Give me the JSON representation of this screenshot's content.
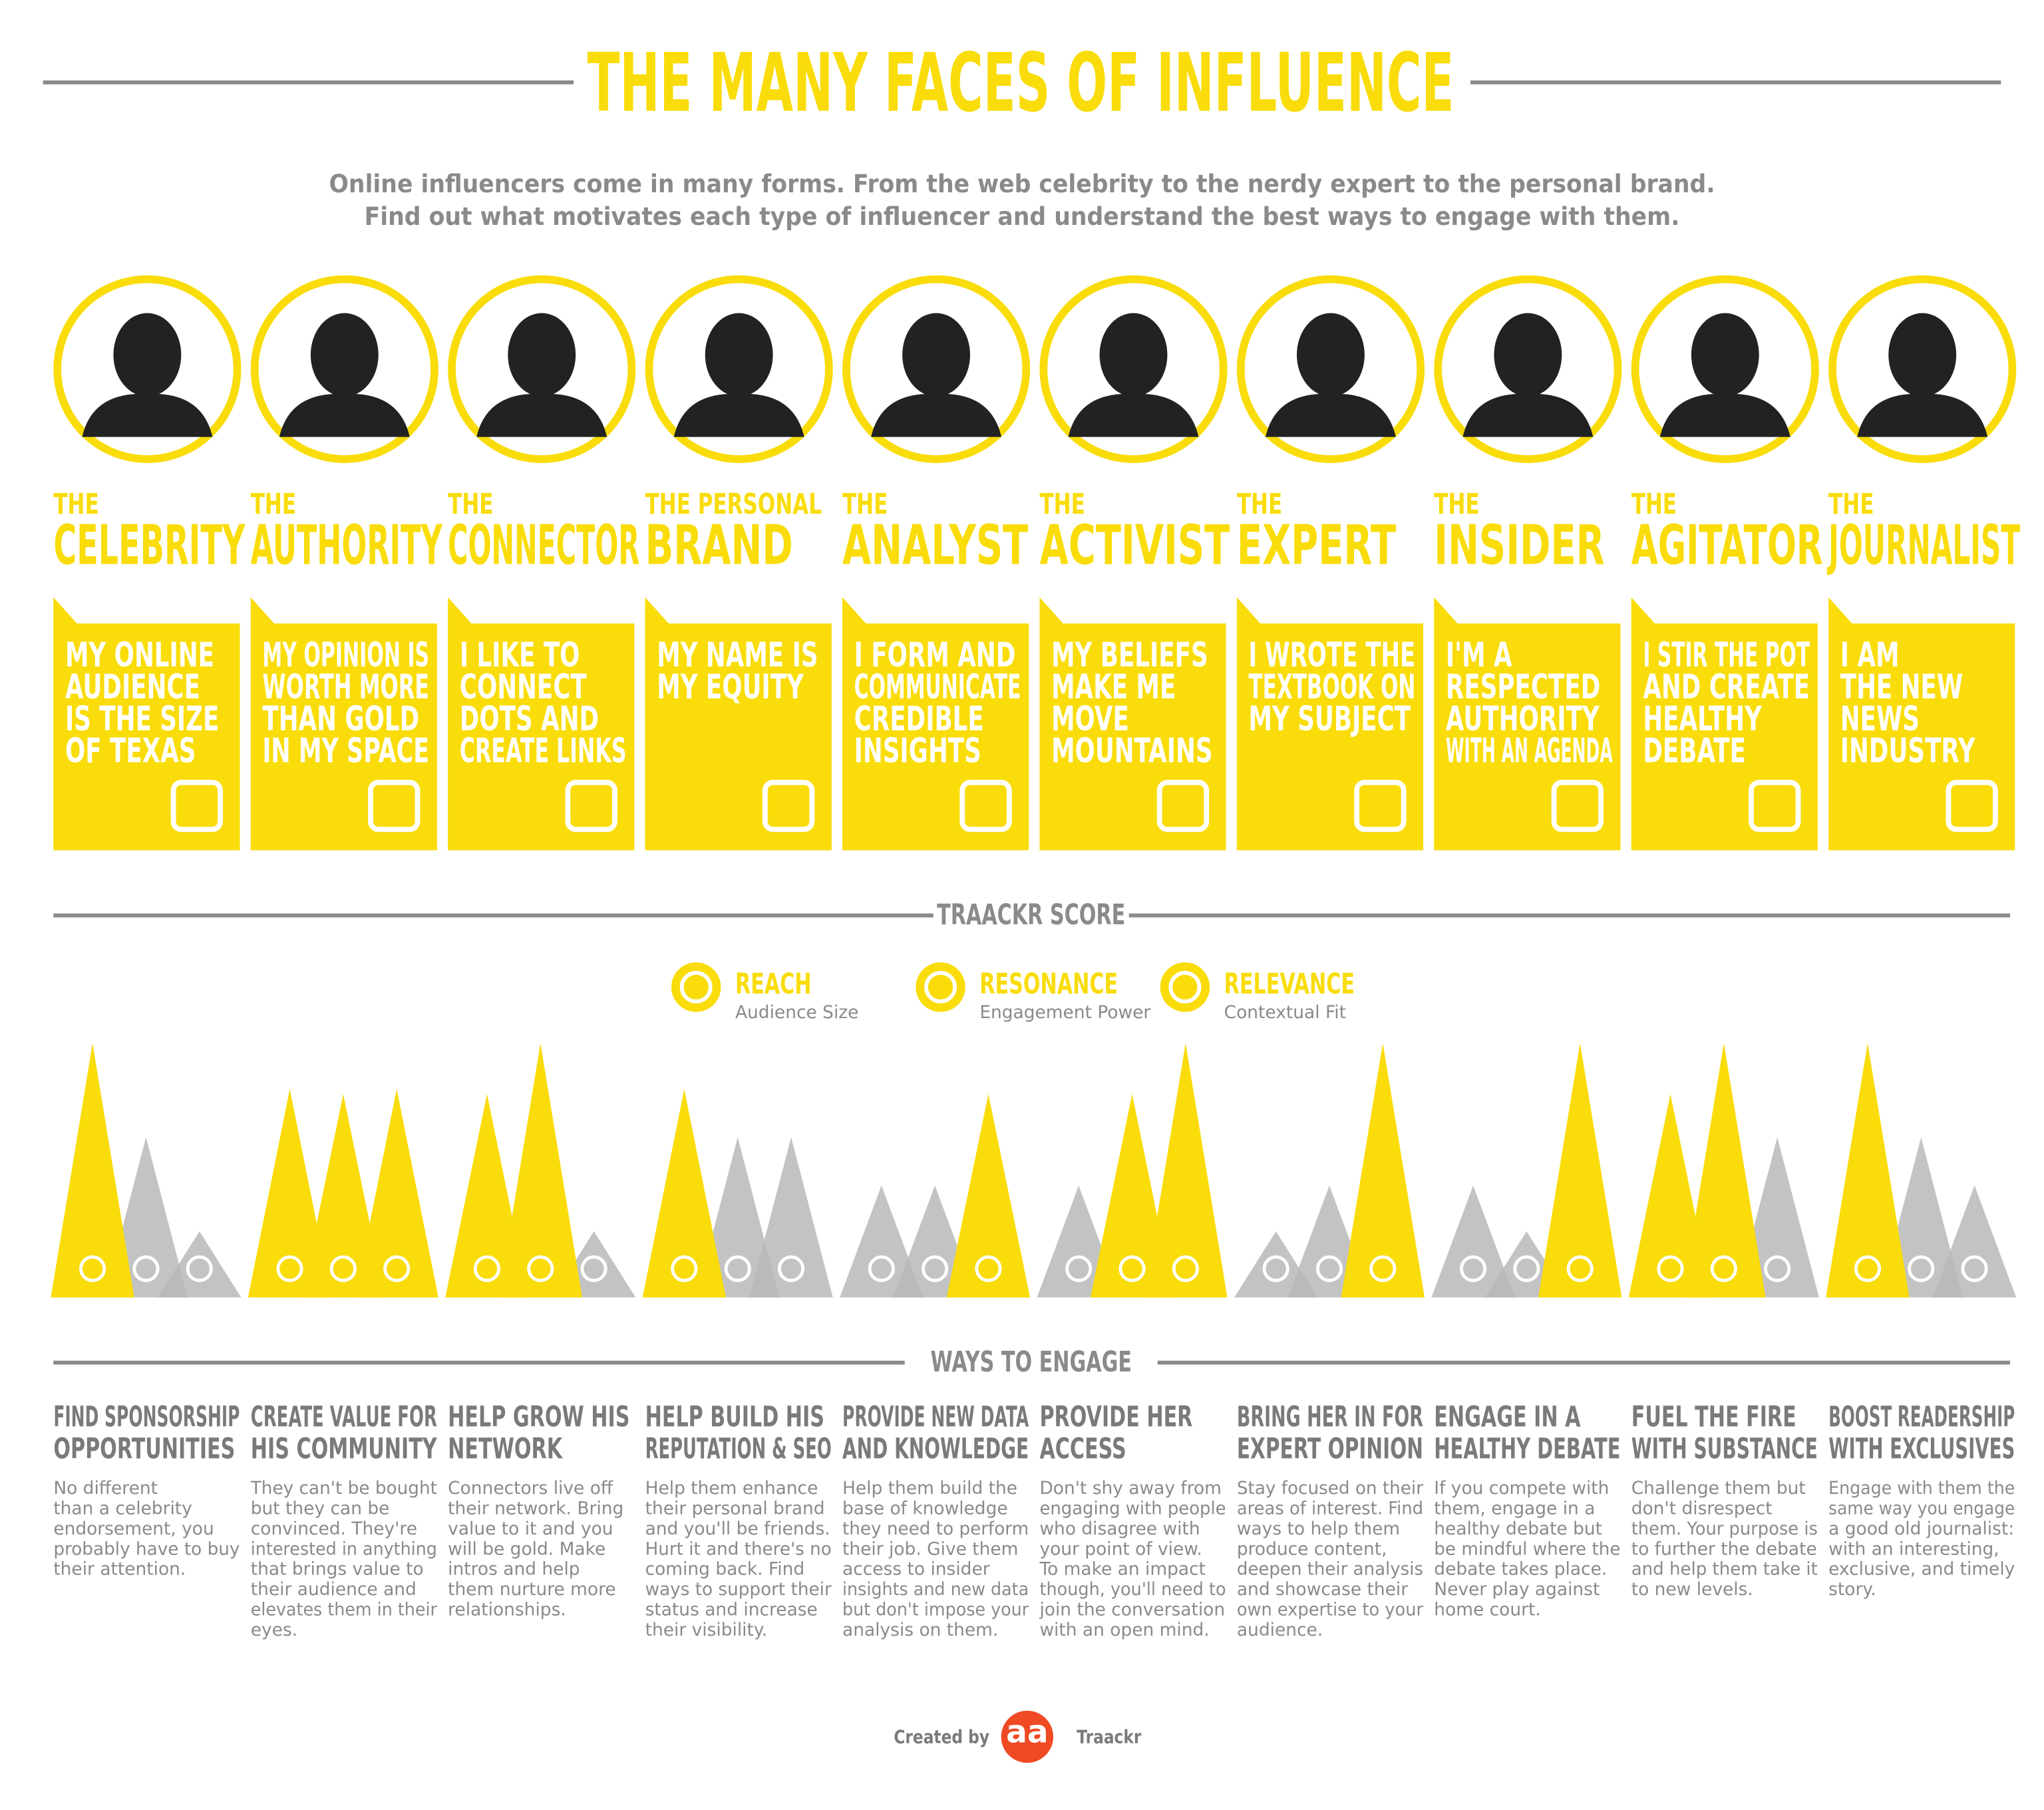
{
  "header": {
    "title": "THE MANY FACES OF INFLUENCE",
    "subtitle": [
      "Online influencers come in many forms. From the web celebrity to the nerdy expert to the personal brand.",
      "Find out what motivates each type of influencer and understand the best ways to engage with them."
    ]
  },
  "profiles": [
    {
      "prefix": "THE",
      "name": "CELEBRITY",
      "quote": [
        "MY ONLINE",
        "AUDIENCE",
        "IS THE SIZE",
        "OF TEXAS"
      ]
    },
    {
      "prefix": "THE",
      "name": "AUTHORITY",
      "quote": [
        "MY OPINION IS",
        "WORTH MORE",
        "THAN GOLD",
        "IN MY SPACE"
      ]
    },
    {
      "prefix": "THE",
      "name": "CONNECTOR",
      "quote": [
        "I LIKE TO",
        "CONNECT",
        "DOTS AND",
        "CREATE LINKS"
      ]
    },
    {
      "prefix": "THE PERSONAL",
      "name": "BRAND",
      "quote": [
        "MY NAME IS",
        "MY EQUITY"
      ]
    },
    {
      "prefix": "THE",
      "name": "ANALYST",
      "quote": [
        "I FORM AND",
        "COMMUNICATE",
        "CREDIBLE",
        "INSIGHTS"
      ]
    },
    {
      "prefix": "THE",
      "name": "ACTIVIST",
      "quote": [
        "MY BELIEFS",
        "MAKE ME",
        "MOVE",
        "MOUNTAINS"
      ]
    },
    {
      "prefix": "THE",
      "name": "EXPERT",
      "quote": [
        "I WROTE THE",
        "TEXTBOOK ON",
        "MY SUBJECT"
      ]
    },
    {
      "prefix": "THE",
      "name": "INSIDER",
      "quote": [
        "I'M A",
        "RESPECTED",
        "AUTHORITY",
        "WITH AN AGENDA"
      ]
    },
    {
      "prefix": "THE",
      "name": "AGITATOR",
      "quote": [
        "I STIR THE POT",
        "AND CREATE",
        "HEALTHY",
        "DEBATE"
      ]
    },
    {
      "prefix": "THE",
      "name": "JOURNALIST",
      "quote": [
        "I AM",
        "THE NEW",
        "NEWS",
        "INDUSTRY"
      ]
    }
  ],
  "traackr_score": {
    "title": "TRAACKR SCORE",
    "metrics": [
      {
        "name": "REACH",
        "description": "Audience Size"
      },
      {
        "name": "RESONANCE",
        "description": "Engagement Power"
      },
      {
        "name": "RELEVANCE",
        "description": "Contextual Fit"
      }
    ],
    "colors": {
      "highlight": "#f9dc0a",
      "muted": "#b9b9b9"
    },
    "scores": [
      {
        "values": [
          100,
          63,
          26
        ],
        "highlight": [
          true,
          false,
          false
        ]
      },
      {
        "values": [
          82,
          80,
          82
        ],
        "highlight": [
          true,
          true,
          true
        ]
      },
      {
        "values": [
          80,
          100,
          26
        ],
        "highlight": [
          true,
          true,
          false
        ]
      },
      {
        "values": [
          82,
          63,
          63
        ],
        "highlight": [
          true,
          false,
          false
        ]
      },
      {
        "values": [
          44,
          44,
          80
        ],
        "highlight": [
          false,
          false,
          true
        ]
      },
      {
        "values": [
          44,
          80,
          100
        ],
        "highlight": [
          false,
          true,
          true
        ]
      },
      {
        "values": [
          26,
          44,
          100
        ],
        "highlight": [
          false,
          false,
          true
        ]
      },
      {
        "values": [
          44,
          26,
          100
        ],
        "highlight": [
          false,
          false,
          true
        ]
      },
      {
        "values": [
          80,
          100,
          63
        ],
        "highlight": [
          true,
          true,
          false
        ]
      },
      {
        "values": [
          100,
          63,
          44
        ],
        "highlight": [
          true,
          false,
          false
        ]
      }
    ]
  },
  "engage": {
    "title": "WAYS TO ENGAGE",
    "items": [
      {
        "title": [
          "FIND SPONSORSHIP",
          "OPPORTUNITIES"
        ],
        "body": [
          "No different",
          "than a celebrity",
          "endorsement, you",
          "probably have to buy",
          "their attention."
        ]
      },
      {
        "title": [
          "CREATE VALUE FOR",
          "HIS COMMUNITY"
        ],
        "body": [
          "They can't be bought",
          "but they can be",
          "convinced. They're",
          "interested in anything",
          "that brings value to",
          "their audience and",
          "elevates them in their",
          "eyes."
        ]
      },
      {
        "title": [
          "HELP GROW HIS",
          "NETWORK"
        ],
        "body": [
          "Connectors live off",
          "their network. Bring",
          "value to it and you",
          "will be gold. Make",
          "intros and help",
          "them nurture more",
          "relationships."
        ]
      },
      {
        "title": [
          "HELP BUILD HIS",
          "REPUTATION & SEO"
        ],
        "body": [
          "Help them enhance",
          "their personal brand",
          "and you'll be friends.",
          "Hurt it and there's no",
          "coming back. Find",
          "ways to support their",
          "status and increase",
          "their visibility."
        ]
      },
      {
        "title": [
          "PROVIDE NEW DATA",
          "AND KNOWLEDGE"
        ],
        "body": [
          "Help them build the",
          "base of knowledge",
          "they need to perform",
          "their job. Give them",
          "access to insider",
          "insights and new data",
          "but don't impose your",
          "analysis on them."
        ]
      },
      {
        "title": [
          "PROVIDE HER",
          "ACCESS"
        ],
        "body": [
          "Don't shy away from",
          "engaging with people",
          "who disagree with",
          "your point of view.",
          "To make an impact",
          "though, you'll need to",
          "join the conversation",
          "with an open mind."
        ]
      },
      {
        "title": [
          "BRING HER IN FOR",
          "EXPERT OPINION"
        ],
        "body": [
          "Stay focused on their",
          "areas of interest. Find",
          "ways to help them",
          "produce content,",
          "deepen their analysis",
          "and showcase their",
          "own expertise to your",
          "audience."
        ]
      },
      {
        "title": [
          "ENGAGE IN A",
          "HEALTHY DEBATE"
        ],
        "body": [
          "If you compete with",
          "them, engage in a",
          "healthy debate but",
          "be mindful where the",
          "debate takes place.",
          "Never  play against",
          "home court."
        ]
      },
      {
        "title": [
          "FUEL THE FIRE",
          "WITH SUBSTANCE"
        ],
        "body": [
          "Challenge them but",
          "don't disrespect",
          "them. Your purpose is",
          "to further the debate",
          "and help them take it",
          "to new levels."
        ]
      },
      {
        "title": [
          "BOOST READERSHIP",
          "WITH EXCLUSIVES"
        ],
        "body": [
          "Engage with them the",
          "same way you engage",
          "a good old journalist:",
          "with an interesting,",
          "exclusive, and timely",
          "story."
        ]
      }
    ]
  },
  "footer": {
    "created_by": "Created by",
    "logo": "aa",
    "brand": "Traackr"
  }
}
